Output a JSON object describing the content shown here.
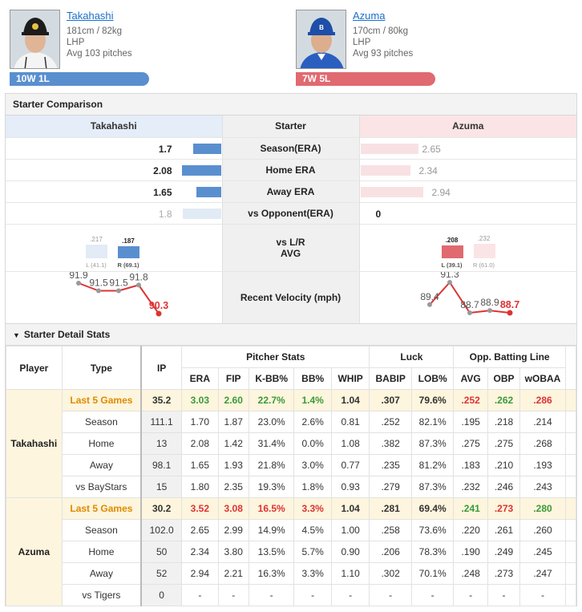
{
  "header": {
    "top_link": "...",
    "left": {
      "name": "Takahashi",
      "height_weight": "181cm / 82kg",
      "hand": "LHP",
      "avg_pitches": "Avg 103 pitches",
      "record": "10W 1L"
    },
    "right": {
      "name": "Azuma",
      "height_weight": "170cm / 80kg",
      "hand": "LHP",
      "avg_pitches": "Avg 93 pitches",
      "record": "7W 5L"
    }
  },
  "comparison": {
    "title": "Starter Comparison",
    "col_left": "Takahashi",
    "col_mid": "Starter",
    "col_right": "Azuma",
    "rows": [
      {
        "label": "Season(ERA)",
        "left": "1.7",
        "right": "2.65",
        "left_frac": 0.64,
        "right_frac": 1.0
      },
      {
        "label": "Home ERA",
        "left": "2.08",
        "right": "2.34",
        "left_frac": 0.89,
        "right_frac": 1.0
      },
      {
        "label": "Away ERA",
        "left": "1.65",
        "right": "2.94",
        "left_frac": 0.56,
        "right_frac": 1.0
      },
      {
        "label": "vs Opponent(ERA)",
        "left": "1.8",
        "right": "0",
        "left_frac": 1.0,
        "right_frac": 0.0
      }
    ],
    "split": {
      "label_line1": "vs L/R",
      "label_line2": "AVG",
      "left": {
        "vsL": ".217",
        "vsR": ".187",
        "L_label": "L (41.1)",
        "R_label": "R (69.1)"
      },
      "right": {
        "vsL": ".208",
        "vsR": ".232",
        "L_label": "L (39.1)",
        "R_label": "R (61.0)"
      }
    },
    "velocity": {
      "label": "Recent Velocity (mph)",
      "left": [
        91.9,
        91.5,
        91.5,
        91.8,
        90.3
      ],
      "left_labels": [
        "91.9",
        "91.5",
        "91.5",
        "91.8",
        "90.3"
      ],
      "right": [
        89.4,
        91.3,
        88.7,
        88.9,
        88.7
      ],
      "right_labels": [
        "89.4",
        "91.3",
        "88.7",
        "88.9",
        "88.7"
      ]
    }
  },
  "detail": {
    "title": "Starter Detail Stats",
    "toggle_icon": "caret-down-icon",
    "headers": {
      "player": "Player",
      "type": "Type",
      "ip": "IP",
      "group_pitcher": "Pitcher Stats",
      "group_luck": "Luck",
      "group_opp": "Opp. Batting Line",
      "era": "ERA",
      "fip": "FIP",
      "kbb": "K-BB%",
      "bb": "BB%",
      "whip": "WHIP",
      "babip": "BABIP",
      "lob": "LOB%",
      "avg": "AVG",
      "obp": "OBP",
      "woba": "wOBAA"
    },
    "players": [
      {
        "name": "Takahashi",
        "rows": [
          {
            "type": "Last 5 Games",
            "ip": "35.2",
            "era": "3.03",
            "fip": "2.60",
            "kbb": "22.7%",
            "bb": "1.4%",
            "whip": "1.04",
            "babip": ".307",
            "lob": "79.6%",
            "avg": ".252",
            "obp": ".262",
            "woba": ".286"
          },
          {
            "type": "Season",
            "ip": "111.1",
            "era": "1.70",
            "fip": "1.87",
            "kbb": "23.0%",
            "bb": "2.6%",
            "whip": "0.81",
            "babip": ".252",
            "lob": "82.1%",
            "avg": ".195",
            "obp": ".218",
            "woba": ".214"
          },
          {
            "type": "Home",
            "ip": "13",
            "era": "2.08",
            "fip": "1.42",
            "kbb": "31.4%",
            "bb": "0.0%",
            "whip": "1.08",
            "babip": ".382",
            "lob": "87.3%",
            "avg": ".275",
            "obp": ".275",
            "woba": ".268"
          },
          {
            "type": "Away",
            "ip": "98.1",
            "era": "1.65",
            "fip": "1.93",
            "kbb": "21.8%",
            "bb": "3.0%",
            "whip": "0.77",
            "babip": ".235",
            "lob": "81.2%",
            "avg": ".183",
            "obp": ".210",
            "woba": ".193"
          },
          {
            "type": "vs BayStars",
            "ip": "15",
            "era": "1.80",
            "fip": "2.35",
            "kbb": "19.3%",
            "bb": "1.8%",
            "whip": "0.93",
            "babip": ".279",
            "lob": "87.3%",
            "avg": ".232",
            "obp": ".246",
            "woba": ".243"
          }
        ]
      },
      {
        "name": "Azuma",
        "rows": [
          {
            "type": "Last 5 Games",
            "ip": "30.2",
            "era": "3.52",
            "fip": "3.08",
            "kbb": "16.5%",
            "bb": "3.3%",
            "whip": "1.04",
            "babip": ".281",
            "lob": "69.4%",
            "avg": ".241",
            "obp": ".273",
            "woba": ".280"
          },
          {
            "type": "Season",
            "ip": "102.0",
            "era": "2.65",
            "fip": "2.99",
            "kbb": "14.9%",
            "bb": "4.5%",
            "whip": "1.00",
            "babip": ".258",
            "lob": "73.6%",
            "avg": ".220",
            "obp": ".261",
            "woba": ".260"
          },
          {
            "type": "Home",
            "ip": "50",
            "era": "2.34",
            "fip": "3.80",
            "kbb": "13.5%",
            "bb": "5.7%",
            "whip": "0.90",
            "babip": ".206",
            "lob": "78.3%",
            "avg": ".190",
            "obp": ".249",
            "woba": ".245"
          },
          {
            "type": "Away",
            "ip": "52",
            "era": "2.94",
            "fip": "2.21",
            "kbb": "16.3%",
            "bb": "3.3%",
            "whip": "1.10",
            "babip": ".302",
            "lob": "70.1%",
            "avg": ".248",
            "obp": ".273",
            "woba": ".247"
          },
          {
            "type": "vs Tigers",
            "ip": "0",
            "era": "-",
            "fip": "-",
            "kbb": "-",
            "bb": "-",
            "whip": "-",
            "babip": "-",
            "lob": "-",
            "avg": "-",
            "obp": "-",
            "woba": "-"
          }
        ]
      }
    ],
    "highlight": {
      "Takahashi": {
        "era": "g",
        "fip": "g",
        "kbb": "g",
        "bb": "g",
        "avg": "r",
        "obp": "g",
        "woba": "r"
      },
      "Azuma": {
        "era": "r",
        "fip": "r",
        "kbb": "r",
        "bb": "r",
        "avg": "g",
        "obp": "r",
        "woba": "g"
      }
    }
  },
  "colors": {
    "blue": "#5a8fcf",
    "red": "#e06a70",
    "green": "#3a9a3a",
    "orange": "#e08a00"
  }
}
